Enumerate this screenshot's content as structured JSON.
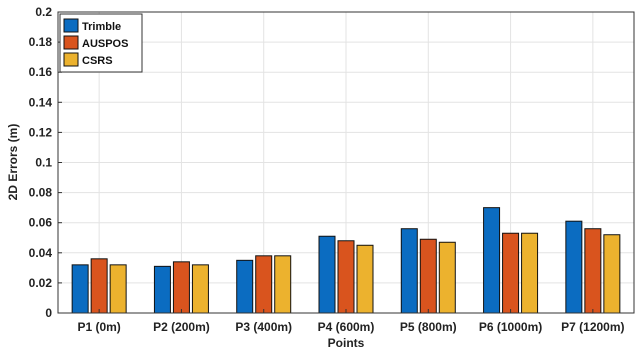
{
  "chart_data": {
    "type": "bar",
    "categories": [
      "P1 (0m)",
      "P2 (200m)",
      "P3 (400m)",
      "P4 (600m)",
      "P5 (800m)",
      "P6 (1000m)",
      "P7 (1200m)"
    ],
    "series": [
      {
        "name": "Trimble",
        "color": "#0b6cc1",
        "values": [
          0.032,
          0.031,
          0.035,
          0.051,
          0.056,
          0.07,
          0.061
        ]
      },
      {
        "name": "AUSPOS",
        "color": "#d9541e",
        "values": [
          0.036,
          0.034,
          0.038,
          0.048,
          0.049,
          0.053,
          0.056
        ]
      },
      {
        "name": "CSRS",
        "color": "#ecb22e",
        "values": [
          0.032,
          0.032,
          0.038,
          0.045,
          0.047,
          0.053,
          0.052
        ]
      }
    ],
    "xlabel": "Points",
    "ylabel": "2D Errors (m)",
    "ylim": [
      0,
      0.2
    ],
    "yticks": [
      "0",
      "0.02",
      "0.04",
      "0.06",
      "0.08",
      "0.1",
      "0.12",
      "0.14",
      "0.16",
      "0.18",
      "0.2"
    ],
    "grid": true,
    "legend_position": "top-left"
  }
}
